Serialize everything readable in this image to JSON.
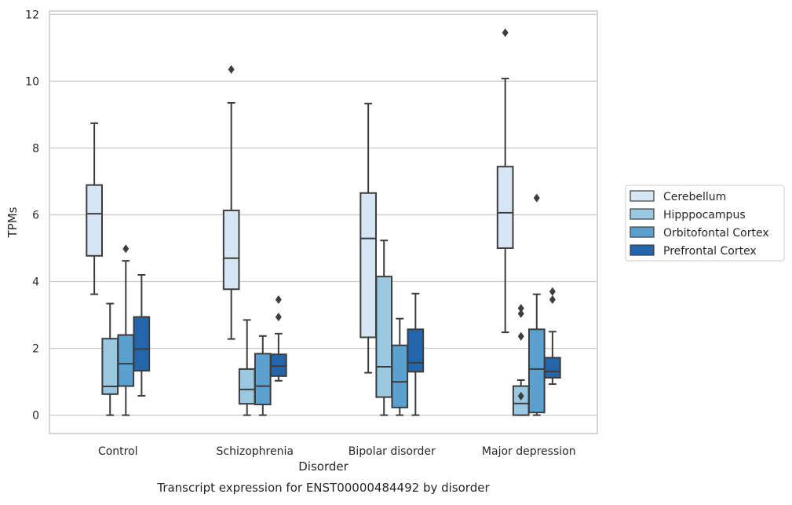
{
  "chart_data": {
    "type": "box",
    "caption": "Transcript expression for ENST00000484492 by disorder",
    "xlabel": "Disorder",
    "ylabel": "TPMs",
    "ylim": [
      -0.55,
      12.1
    ],
    "y_ticks": [
      0,
      2,
      4,
      6,
      8,
      10,
      12
    ],
    "grid": "horizontal",
    "legend_position": "right",
    "categories": [
      "Control",
      "Schizophrenia",
      "Bipolar disorder",
      "Major depression"
    ],
    "series": [
      {
        "name": "Cerebellum",
        "color": "#d6e6f4",
        "boxes": [
          {
            "whisker_low": 3.62,
            "q1": 4.77,
            "median": 6.03,
            "q3": 6.89,
            "whisker_high": 8.74,
            "outliers": []
          },
          {
            "whisker_low": 2.28,
            "q1": 3.77,
            "median": 4.7,
            "q3": 6.13,
            "whisker_high": 9.35,
            "outliers": [
              10.35
            ]
          },
          {
            "whisker_low": 1.27,
            "q1": 2.33,
            "median": 5.29,
            "q3": 6.65,
            "whisker_high": 9.33,
            "outliers": []
          },
          {
            "whisker_low": 2.48,
            "q1": 5.0,
            "median": 6.06,
            "q3": 7.44,
            "whisker_high": 10.08,
            "outliers": [
              11.45
            ]
          }
        ]
      },
      {
        "name": "Hipppocampus",
        "color": "#9ac8e0",
        "boxes": [
          {
            "whisker_low": 0.0,
            "q1": 0.63,
            "median": 0.86,
            "q3": 2.29,
            "whisker_high": 3.34,
            "outliers": []
          },
          {
            "whisker_low": 0.0,
            "q1": 0.34,
            "median": 0.77,
            "q3": 1.38,
            "whisker_high": 2.85,
            "outliers": []
          },
          {
            "whisker_low": 0.0,
            "q1": 0.54,
            "median": 1.45,
            "q3": 4.15,
            "whisker_high": 5.23,
            "outliers": []
          },
          {
            "whisker_low": 0.0,
            "q1": 0.0,
            "median": 0.35,
            "q3": 0.87,
            "whisker_high": 1.05,
            "outliers": [
              0.57,
              3.2,
              3.04,
              2.36
            ]
          }
        ]
      },
      {
        "name": "Orbitofontal Cortex",
        "color": "#5aa1cf",
        "boxes": [
          {
            "whisker_low": 0.0,
            "q1": 0.87,
            "median": 1.54,
            "q3": 2.4,
            "whisker_high": 4.62,
            "outliers": [
              4.98
            ]
          },
          {
            "whisker_low": 0.0,
            "q1": 0.32,
            "median": 0.87,
            "q3": 1.84,
            "whisker_high": 2.37,
            "outliers": []
          },
          {
            "whisker_low": 0.0,
            "q1": 0.23,
            "median": 1.0,
            "q3": 2.09,
            "whisker_high": 2.89,
            "outliers": []
          },
          {
            "whisker_low": 0.0,
            "q1": 0.08,
            "median": 1.38,
            "q3": 2.57,
            "whisker_high": 3.62,
            "outliers": [
              6.5
            ]
          }
        ]
      },
      {
        "name": "Prefrontal Cortex",
        "color": "#2366ac",
        "boxes": [
          {
            "whisker_low": 0.58,
            "q1": 1.33,
            "median": 1.98,
            "q3": 2.94,
            "whisker_high": 4.2,
            "outliers": []
          },
          {
            "whisker_low": 1.03,
            "q1": 1.17,
            "median": 1.47,
            "q3": 1.82,
            "whisker_high": 2.44,
            "outliers": [
              3.46,
              2.94
            ]
          },
          {
            "whisker_low": 0.0,
            "q1": 1.3,
            "median": 1.57,
            "q3": 2.57,
            "whisker_high": 3.64,
            "outliers": []
          },
          {
            "whisker_low": 0.93,
            "q1": 1.12,
            "median": 1.31,
            "q3": 1.72,
            "whisker_high": 2.5,
            "outliers": [
              3.7,
              3.46
            ]
          }
        ]
      }
    ]
  }
}
